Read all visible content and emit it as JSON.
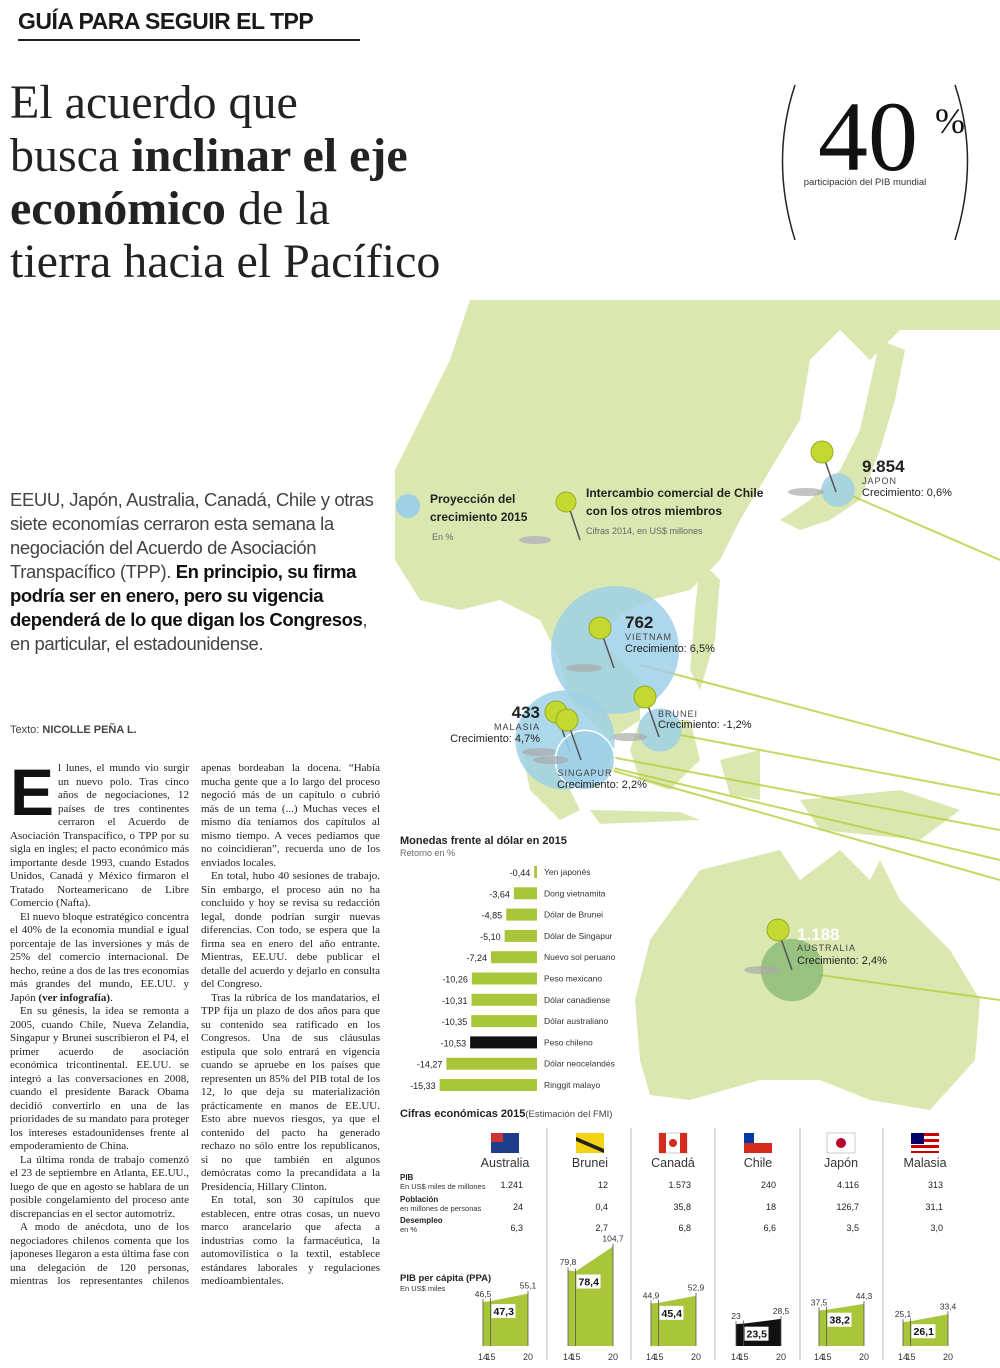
{
  "header": {
    "kicker": "GUÍA PARA SEGUIR EL TPP",
    "headline": [
      "El acuerdo que",
      "busca ",
      "inclinar el eje",
      "económico",
      " de la",
      "tierra hacia el Pacífico"
    ]
  },
  "stat": {
    "value": 40,
    "unit": "%",
    "caption": "participación del PIB mundial"
  },
  "intro": {
    "text": "EEUU, Japón, Australia, Canadá, Chile y otras siete economías  cerraron esta semana la negociación del Acuerdo de Asociación Transpacífico (TPP). ",
    "bold": "En principio, su firma podría ser en enero, pero su vigencia dependerá de lo que digan los Congresos",
    "end": ", en particular, el estadounidense."
  },
  "byline": {
    "label": "Texto: ",
    "author": "NICOLLE PEÑA L."
  },
  "body": {
    "drop_cap": "E",
    "paragraphs": [
      "l lunes, el mundo vio surgir un nuevo polo. Tras cinco años de negociaciones, 12 países de tres continentes cerraron el Acuerdo de Asociación Transpacífico, o TPP por su sigla en ingles; el pacto económico más importante desde 1993, cuando Estados Unidos, Canadá y México firmaron el Tratado Norteamericano de Libre Comercio (Nafta).",
      "El nuevo bloque estratégico concentra el 40% de la economía mundial e igual porcentaje de las inversiones y más de 25% del comercio internacional. De hecho, reúne a dos de las tres economías más grandes del mundo, EE.UU. y Japón ",
      "En su génesis, la idea se remonta a 2005, cuando Chile, Nueva Zelandia, Singapur y Brunei suscribieron el P4, el primer acuerdo de asociación económica tricontinental. EE.UU. se integró a las conversaciones en 2008, cuando el presidente Barack Obama decidió convertirlo en una de las prioridades de su mandato para proteger los intereses estadounidenses frente al empoderamiento de China.",
      "La última ronda de trabajo comenzó el 23 de septiembre en Atlanta, EE.UU., luego de que en agosto se hablara de un posible congelamiento del proceso ante discrepancias en el sector automotriz.",
      "A modo de anécdota, uno de los negociadores chilenos comenta que los japoneses llegaron a esta última fase con una delegación de 120 personas, mientras los representantes chilenos apenas bordeaban la docena. “Había mucha gente que a lo largo del proceso negoció más de un capítulo o cubrió más de un tema (...) Muchas veces el mismo día teníamos dos capítulos al mismo tiempo. A veces pedíamos que no coincidieran”, recuerda uno de los enviados locales.",
      "En total, hubo 40 sesiones de trabajo. Sin embargo, el proceso aún no ha concluido y hoy se revisa su redacción legal, donde podrían surgir nuevas diferencias. Con todo, se espera que la firma sea en enero del año entrante. Mientras, EE.UU. debe publicar el detalle del acuerdo y dejarlo en consulta del Congreso.",
      "Tras la rúbrica de los mandatarios, el TPP fija un plazo de dos años para que su contenido sea ratificado en los Congresos.  Una de sus cláusulas estipula que solo entrará en vigencia cuando se apruebe en los países que representen un 85% del PIB total de los 12, lo que deja su materialización prácticamente en manos de EE.UU. Esto abre nuevos riesgos, ya que el contenido del pacto ha generado rechazo no sólo entre los republicanos, si no que también en algunos demócratas como la precandidata a la Presidencia, Hillary Clinton.",
      "En total, son 30 capítulos que establecen, entre otras cosas, un nuevo marco arancelario que afecta a industrias como la farmacéutica, la automovilística o la textil, establece estándares laborales y regulaciones medioambientales."
    ],
    "reference": "(ver infografía)",
    "reference_end": "."
  },
  "map": {
    "legend": {
      "growth_title": "Proyección del crecimiento 2015",
      "growth_unit": "En %",
      "trade_title": "Intercambio comercial de Chile con los otros miembros",
      "trade_unit": "Cifras 2014, en US$ millones"
    },
    "countries": [
      {
        "name": "JAPON",
        "trade": 9854,
        "trade_label": "9.854",
        "growth": 0.6,
        "growth_label": "Crecimiento: 0,6%"
      },
      {
        "name": "VIETNAM",
        "trade": 762,
        "trade_label": "762",
        "growth": 6.5,
        "growth_label": "Crecimiento: 6,5%"
      },
      {
        "name": "BRUNEI",
        "growth": -1.2,
        "growth_label": "Crecimiento: -1,2%"
      },
      {
        "name": "MALASIA",
        "trade": 433,
        "trade_label": "433",
        "growth": 4.7,
        "growth_label": "Crecimiento: 4,7%"
      },
      {
        "name": "SINGAPUR",
        "growth": 2.2,
        "growth_label": "Crecimiento: 2,2%"
      },
      {
        "name": "AUSTRALIA",
        "trade": 1188,
        "trade_label": "1.188",
        "growth": 2.4,
        "growth_label": "Crecimiento: 2,4%"
      }
    ]
  },
  "economy": {
    "title": "Cifras económicas 2015",
    "note": " (Estimación del FMI)",
    "countries": [
      "Australia",
      "Brunei",
      "Canadá",
      "Chile",
      "Japón",
      "Malasia"
    ],
    "rows": [
      {
        "label": "PIB",
        "sublabel": "En US$ miles de millones",
        "values": [
          "1.241",
          "12",
          "1.573",
          "240",
          "4.116",
          "313"
        ]
      },
      {
        "label": "Población",
        "sublabel": "en millones de personas",
        "values": [
          "24",
          "0,4",
          "35,8",
          "18",
          "126,7",
          "31,1"
        ]
      },
      {
        "label": "Desempleo",
        "sublabel": "en %",
        "values": [
          "6,3",
          "2,7",
          "6,8",
          "6,6",
          "3,5",
          "3,0"
        ]
      }
    ],
    "per_capita_title": "PIB per cápita (PPA)",
    "per_capita_unit": "En US$ miles"
  },
  "chart_data": [
    {
      "type": "bar",
      "title": "Monedas frente al dólar en 2015",
      "subtitle": "Retorno en %",
      "categories": [
        "Yen japonés",
        "Dong vietnamita",
        "Dólar de Brunei",
        "Dólar de Singapur",
        "Nuevo sol peruano",
        "Peso mexicano",
        "Dólar canadiense",
        "Dólar australiano",
        "Peso chileno",
        "Dólar neocelandés",
        "Ringgit malayo"
      ],
      "values": [
        -0.44,
        -3.64,
        -4.85,
        -5.1,
        -7.24,
        -10.26,
        -10.31,
        -10.35,
        -10.53,
        -14.27,
        -15.33
      ],
      "value_labels": [
        "-0,44",
        "-3,64",
        "-4,85",
        "-5,10",
        "-7,24",
        "-10,26",
        "-10,31",
        "-10,35",
        "-10,53",
        "-14,27",
        "-15,33"
      ],
      "colors": [
        "#a9c53a",
        "#a9c53a",
        "#a9c53a",
        "#a9c53a",
        "#a9c53a",
        "#a9c53a",
        "#a9c53a",
        "#a9c53a",
        "#111111",
        "#a9c53a",
        "#a9c53a"
      ]
    },
    {
      "type": "area",
      "x": [
        14,
        15,
        20
      ],
      "values": [
        46.5,
        47.3,
        55.1
      ],
      "value_labels": [
        "46,5",
        "47,3",
        "55,1"
      ],
      "color": "#a9c53a"
    },
    {
      "type": "area",
      "x": [
        14,
        15,
        20
      ],
      "values": [
        79.8,
        78.4,
        104.7
      ],
      "value_labels": [
        "79,8",
        "78,4",
        "104,7"
      ],
      "color": "#a9c53a"
    },
    {
      "type": "area",
      "x": [
        14,
        15,
        20
      ],
      "values": [
        44.9,
        45.4,
        52.9
      ],
      "value_labels": [
        "44,9",
        "45,4",
        "52,9"
      ],
      "color": "#a9c53a"
    },
    {
      "type": "area",
      "x": [
        14,
        15,
        20
      ],
      "values": [
        23,
        23.5,
        28.5
      ],
      "value_labels": [
        "23",
        "23,5",
        "28,5"
      ],
      "color": "#111111"
    },
    {
      "type": "area",
      "x": [
        14,
        15,
        20
      ],
      "values": [
        37.5,
        38.2,
        44.3
      ],
      "value_labels": [
        "37,5",
        "38,2",
        "44,3"
      ],
      "color": "#a9c53a"
    },
    {
      "type": "area",
      "x": [
        14,
        15,
        20
      ],
      "values": [
        25.1,
        26.1,
        33.4
      ],
      "value_labels": [
        "25,1",
        "26,1",
        "33,4"
      ],
      "color": "#a9c53a"
    }
  ]
}
